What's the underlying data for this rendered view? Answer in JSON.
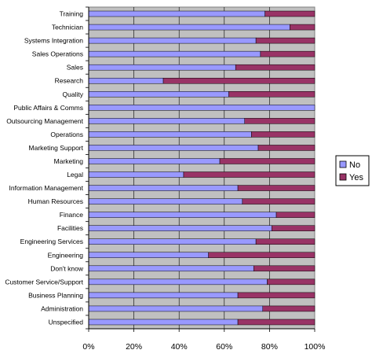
{
  "chart_data": {
    "type": "bar",
    "orientation": "horizontal",
    "stacked": "percent",
    "categories": [
      "Training",
      "Technician",
      "Systems Integration",
      "Sales Operations",
      "Sales",
      "Research",
      "Quality",
      "Public Affairs & Comms",
      "Outsourcing Management",
      "Operations",
      "Marketing Support",
      "Marketing",
      "Legal",
      "Information Management",
      "Human Resources",
      "Finance",
      "Facilities",
      "Engineering Services",
      "Engineering",
      "Don't know",
      "Customer Service/Support",
      "Business Planning",
      "Administration",
      "Unspecified"
    ],
    "series": [
      {
        "name": "No",
        "color": "#9999ff",
        "values": [
          78,
          89,
          74,
          76,
          65,
          33,
          62,
          100,
          69,
          72,
          75,
          58,
          42,
          66,
          68,
          83,
          81,
          74,
          53,
          73,
          79,
          66,
          77,
          66
        ]
      },
      {
        "name": "Yes",
        "color": "#993366",
        "values": [
          22,
          11,
          26,
          24,
          35,
          67,
          38,
          0,
          31,
          28,
          25,
          42,
          58,
          34,
          32,
          17,
          19,
          26,
          47,
          27,
          21,
          34,
          23,
          34
        ]
      }
    ],
    "x_ticks": [
      "0%",
      "20%",
      "40%",
      "60%",
      "80%",
      "100%"
    ],
    "xlim": [
      0,
      100
    ],
    "plot_background": "#c0c0c0",
    "grid": true,
    "legend_position": "right"
  }
}
